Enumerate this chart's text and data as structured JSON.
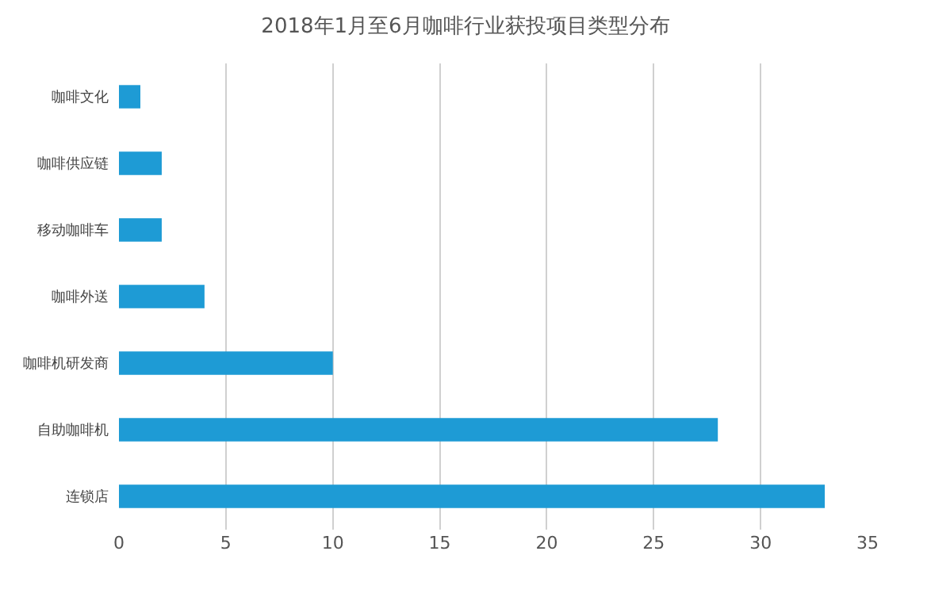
{
  "chart_data": {
    "type": "bar",
    "orientation": "horizontal",
    "title": "2018年1月至6月咖啡行业获投项目类型分布",
    "categories": [
      "咖啡文化",
      "咖啡供应链",
      "移动咖啡车",
      "咖啡外送",
      "咖啡机研发商",
      "自助咖啡机",
      "连锁店"
    ],
    "values": [
      1,
      2,
      2,
      4,
      10,
      28,
      33
    ],
    "color": "#1e9bd5",
    "xlim": [
      0,
      35
    ],
    "xticks": [
      0,
      5,
      10,
      15,
      20,
      25,
      30,
      35
    ],
    "grid": "x"
  }
}
